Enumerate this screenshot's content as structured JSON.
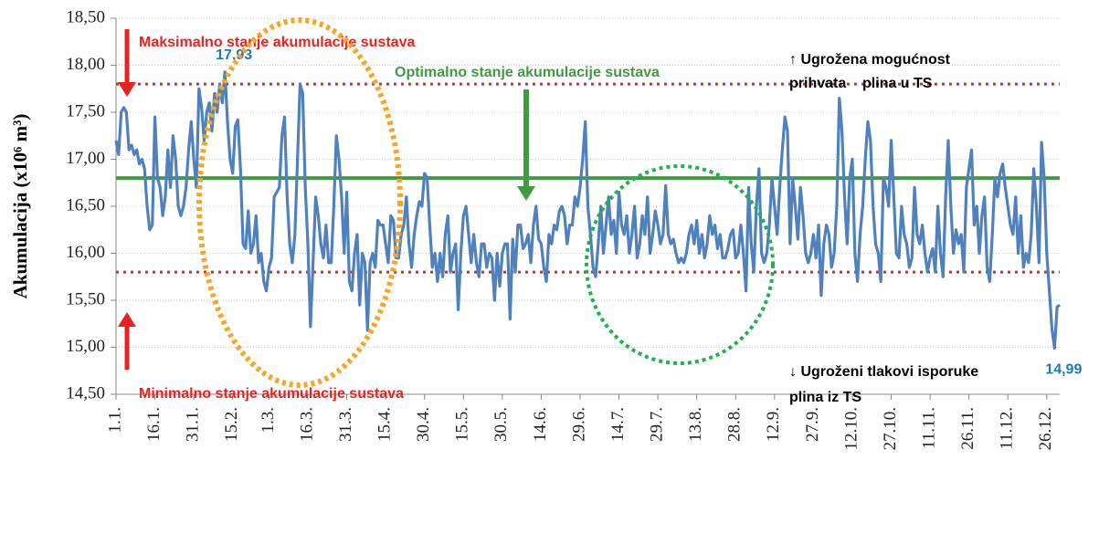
{
  "chart_data": {
    "type": "line",
    "y_label": "Akumulacija (x10⁶ m³)",
    "ylim": [
      14.5,
      18.5
    ],
    "yticks": [
      {
        "value": 14.5,
        "label": "14,50"
      },
      {
        "value": 15,
        "label": "15,00"
      },
      {
        "value": 15.5,
        "label": "15,50"
      },
      {
        "value": 16,
        "label": "16,00"
      },
      {
        "value": 16.5,
        "label": "16,50"
      },
      {
        "value": 17,
        "label": "17,00"
      },
      {
        "value": 17.5,
        "label": "17,50"
      },
      {
        "value": 18,
        "label": "18,00"
      },
      {
        "value": 18.5,
        "label": "18,50"
      }
    ],
    "grid": true,
    "color": "#4f81bd",
    "categories": [
      "1.1.",
      null,
      null,
      null,
      null,
      null,
      null,
      null,
      null,
      null,
      null,
      null,
      null,
      null,
      null,
      "16.1.",
      null,
      null,
      null,
      null,
      null,
      null,
      null,
      null,
      null,
      null,
      null,
      null,
      null,
      null,
      "31.1.",
      null,
      null,
      null,
      null,
      null,
      null,
      null,
      null,
      null,
      null,
      null,
      null,
      null,
      null,
      "15.2.",
      null,
      null,
      null,
      null,
      null,
      null,
      null,
      null,
      null,
      null,
      null,
      null,
      null,
      "1.3.",
      null,
      null,
      null,
      null,
      null,
      null,
      null,
      null,
      null,
      null,
      null,
      null,
      null,
      null,
      "16.3.",
      null,
      null,
      null,
      null,
      null,
      null,
      null,
      null,
      null,
      null,
      null,
      null,
      null,
      null,
      "31.3.",
      null,
      null,
      null,
      null,
      null,
      null,
      null,
      null,
      null,
      null,
      null,
      null,
      null,
      null,
      "15.4.",
      null,
      null,
      null,
      null,
      null,
      null,
      null,
      null,
      null,
      null,
      null,
      null,
      null,
      null,
      "30.4.",
      null,
      null,
      null,
      null,
      null,
      null,
      null,
      null,
      null,
      null,
      null,
      null,
      null,
      null,
      "15.5.",
      null,
      null,
      null,
      null,
      null,
      null,
      null,
      null,
      null,
      null,
      null,
      null,
      null,
      null,
      "30.5.",
      null,
      null,
      null,
      null,
      null,
      null,
      null,
      null,
      null,
      null,
      null,
      null,
      null,
      null,
      "14.6.",
      null,
      null,
      null,
      null,
      null,
      null,
      null,
      null,
      null,
      null,
      null,
      null,
      null,
      null,
      "29.6.",
      null,
      null,
      null,
      null,
      null,
      null,
      null,
      null,
      null,
      null,
      null,
      null,
      null,
      null,
      "14.7.",
      null,
      null,
      null,
      null,
      null,
      null,
      null,
      null,
      null,
      null,
      null,
      null,
      null,
      null,
      "29.7.",
      null,
      null,
      null,
      null,
      null,
      null,
      null,
      null,
      null,
      null,
      null,
      null,
      null,
      null,
      "13.8.",
      null,
      null,
      null,
      null,
      null,
      null,
      null,
      null,
      null,
      null,
      null,
      null,
      null,
      null,
      "28.8.",
      null,
      null,
      null,
      null,
      null,
      null,
      null,
      null,
      null,
      null,
      null,
      null,
      null,
      null,
      "12.9.",
      null,
      null,
      null,
      null,
      null,
      null,
      null,
      null,
      null,
      null,
      null,
      null,
      null,
      null,
      "27.9.",
      null,
      null,
      null,
      null,
      null,
      null,
      null,
      null,
      null,
      null,
      null,
      null,
      null,
      null,
      "12.10.",
      null,
      null,
      null,
      null,
      null,
      null,
      null,
      null,
      null,
      null,
      null,
      null,
      null,
      null,
      "27.10.",
      null,
      null,
      null,
      null,
      null,
      null,
      null,
      null,
      null,
      null,
      null,
      null,
      null,
      null,
      "11.11.",
      null,
      null,
      null,
      null,
      null,
      null,
      null,
      null,
      null,
      null,
      null,
      null,
      null,
      null,
      "26.11.",
      null,
      null,
      null,
      null,
      null,
      null,
      null,
      null,
      null,
      null,
      null,
      null,
      null,
      null,
      "11.12.",
      null,
      null,
      null,
      null,
      null,
      null,
      null,
      null,
      null,
      null,
      null,
      null,
      null,
      null,
      "26.12.",
      null,
      null,
      null,
      null,
      null
    ],
    "values": [
      17.2,
      17.05,
      17.5,
      17.55,
      17.5,
      17.1,
      17.15,
      17.05,
      17.1,
      16.95,
      17.0,
      16.9,
      16.5,
      16.25,
      16.3,
      17.45,
      16.8,
      16.7,
      16.4,
      16.6,
      17.1,
      16.7,
      17.25,
      17.0,
      16.5,
      16.4,
      16.5,
      16.7,
      17.1,
      17.4,
      17.0,
      16.7,
      17.75,
      17.55,
      17.2,
      17.5,
      17.6,
      17.3,
      17.7,
      17.5,
      17.8,
      17.6,
      17.93,
      17.4,
      17.0,
      16.85,
      17.35,
      17.42,
      16.9,
      16.1,
      16.05,
      16.45,
      16.0,
      16.1,
      16.4,
      15.9,
      16.0,
      15.7,
      15.6,
      15.85,
      15.95,
      16.6,
      16.65,
      16.7,
      17.25,
      17.45,
      16.6,
      16.1,
      15.9,
      16.2,
      17.0,
      17.8,
      17.7,
      16.7,
      16.1,
      15.22,
      15.9,
      16.6,
      16.4,
      16.1,
      15.95,
      16.3,
      15.9,
      15.9,
      16.5,
      17.25,
      17.0,
      16.6,
      16.0,
      16.65,
      15.7,
      15.6,
      16.0,
      16.2,
      15.45,
      16.0,
      15.9,
      15.18,
      15.9,
      16.0,
      15.85,
      16.35,
      16.3,
      16.3,
      16.1,
      15.9,
      16.4,
      16.35,
      15.95,
      15.95,
      16.2,
      16.3,
      16.6,
      16.1,
      15.85,
      16.2,
      16.4,
      16.55,
      16.5,
      16.85,
      16.8,
      16.3,
      15.85,
      16.0,
      15.7,
      16.0,
      15.75,
      16.2,
      16.4,
      15.8,
      16.0,
      16.1,
      15.4,
      16.0,
      16.4,
      16.5,
      16.2,
      15.9,
      16.2,
      15.9,
      15.75,
      16.1,
      16.1,
      15.85,
      16.0,
      15.95,
      15.5,
      16.0,
      15.65,
      16.0,
      16.1,
      16.1,
      15.3,
      16.15,
      15.8,
      16.3,
      16.3,
      16.05,
      16.1,
      16.2,
      15.9,
      16.3,
      16.5,
      16.15,
      16.1,
      15.85,
      15.7,
      16.2,
      16.1,
      16.3,
      16.25,
      16.45,
      16.5,
      16.4,
      16.1,
      16.3,
      16.3,
      16.6,
      16.5,
      16.7,
      17.0,
      17.4,
      16.5,
      16.2,
      15.85,
      15.75,
      16.1,
      16.5,
      16.0,
      16.3,
      16.6,
      16.2,
      16.35,
      16.0,
      16.65,
      16.3,
      16.2,
      16.4,
      16.0,
      16.2,
      16.5,
      15.95,
      16.1,
      16.4,
      16.2,
      16.6,
      16.0,
      16.2,
      16.45,
      16.3,
      16.1,
      16.2,
      16.72,
      16.2,
      16.1,
      16.15,
      16.0,
      15.9,
      15.95,
      15.9,
      16.0,
      16.2,
      16.3,
      16.1,
      16.35,
      16.0,
      16.2,
      15.95,
      16.1,
      16.4,
      16.2,
      16.3,
      16.05,
      16.2,
      15.95,
      15.95,
      16.05,
      16.2,
      16.25,
      15.95,
      16.0,
      16.3,
      16.0,
      15.6,
      16.7,
      16.1,
      15.8,
      16.5,
      16.9,
      16.0,
      15.9,
      16.0,
      16.3,
      16.8,
      16.5,
      16.2,
      16.7,
      17.1,
      17.45,
      17.3,
      16.1,
      16.8,
      16.5,
      16.15,
      16.7,
      16.4,
      16.0,
      15.9,
      16.0,
      16.2,
      15.95,
      16.3,
      15.55,
      16.1,
      16.3,
      16.2,
      15.85,
      16.0,
      16.5,
      17.65,
      17.3,
      16.6,
      16.1,
      16.8,
      17.0,
      16.0,
      15.7,
      16.2,
      16.5,
      17.0,
      17.4,
      17.2,
      16.5,
      16.1,
      16.0,
      15.7,
      16.8,
      16.7,
      16.5,
      17.2,
      16.6,
      16.0,
      15.95,
      16.5,
      16.2,
      16.1,
      15.85,
      15.95,
      16.7,
      16.2,
      16.1,
      16.3,
      16.0,
      15.8,
      15.95,
      16.05,
      15.8,
      16.5,
      16.0,
      15.75,
      16.6,
      17.2,
      16.5,
      16.0,
      16.25,
      16.1,
      16.2,
      15.8,
      16.7,
      16.9,
      17.1,
      16.3,
      16.5,
      16.0,
      16.4,
      16.6,
      15.85,
      15.7,
      16.2,
      16.8,
      16.6,
      16.85,
      16.95,
      16.7,
      16.5,
      16.3,
      16.2,
      16.6,
      16.0,
      16.4,
      15.85,
      16.0,
      15.9,
      16.2,
      16.9,
      16.5,
      15.9,
      17.18,
      16.8,
      16.0,
      15.6,
      15.2,
      14.99,
      15.43,
      15.45
    ],
    "value_labels": [
      null,
      null,
      null,
      null,
      null,
      null,
      null,
      null,
      null,
      null,
      null,
      null,
      null,
      null,
      null,
      null,
      null,
      null,
      null,
      null,
      null,
      null,
      null,
      null,
      null,
      null,
      null,
      null,
      null,
      null,
      null,
      null,
      null,
      null,
      null,
      null,
      null,
      null,
      null,
      null,
      null,
      null,
      "17,93",
      null,
      null,
      null,
      null,
      null,
      null,
      null,
      null,
      null,
      null,
      null,
      null,
      null,
      null,
      null,
      null,
      null,
      null,
      null,
      null,
      null,
      null,
      null,
      null,
      null,
      null,
      null,
      null,
      null,
      null,
      null,
      null,
      null,
      null,
      null,
      null,
      null,
      null,
      null,
      null,
      null,
      null,
      null,
      null,
      null,
      null,
      null,
      null,
      null,
      null,
      null,
      null,
      null,
      null,
      null,
      null,
      null,
      null,
      null,
      null,
      null,
      null,
      null,
      null,
      null,
      null,
      null,
      null,
      null,
      null,
      null,
      null,
      null,
      null,
      null,
      null,
      null,
      null,
      null,
      null,
      null,
      null,
      null,
      null,
      null,
      null,
      null,
      null,
      null,
      null,
      null,
      null,
      null,
      null,
      null,
      null,
      null,
      null,
      null,
      null,
      null,
      null,
      null,
      null,
      null,
      null,
      null,
      null,
      null,
      null,
      null,
      null,
      null,
      null,
      null,
      null,
      null,
      null,
      null,
      null,
      null,
      null,
      null,
      null,
      null,
      null,
      null,
      null,
      null,
      null,
      null,
      null,
      null,
      null,
      null,
      null,
      null,
      null,
      null,
      null,
      null,
      null,
      null,
      null,
      null,
      null,
      null,
      null,
      null,
      null,
      null,
      null,
      null,
      null,
      null,
      null,
      null,
      null,
      null,
      null,
      null,
      null,
      null,
      null,
      null,
      null,
      null,
      null,
      null,
      null,
      null,
      null,
      null,
      null,
      null,
      null,
      null,
      null,
      null,
      null,
      null,
      null,
      null,
      null,
      null,
      null,
      null,
      null,
      null,
      null,
      null,
      null,
      null,
      null,
      null,
      null,
      null,
      null,
      null,
      null,
      null,
      null,
      null,
      null,
      null,
      null,
      null,
      null,
      null,
      null,
      null,
      null,
      null,
      null,
      null,
      null,
      null,
      null,
      null,
      null,
      null,
      null,
      null,
      null,
      null,
      null,
      null,
      null,
      null,
      null,
      null,
      null,
      null,
      null,
      null,
      null,
      null,
      null,
      null,
      null,
      null,
      null,
      null,
      null,
      null,
      null,
      null,
      null,
      null,
      null,
      null,
      null,
      null,
      null,
      null,
      null,
      null,
      null,
      null,
      null,
      null,
      null,
      null,
      null,
      null,
      null,
      null,
      null,
      null,
      null,
      null,
      null,
      null,
      null,
      null,
      null,
      null,
      null,
      null,
      null,
      null,
      null,
      null,
      null,
      null,
      null,
      null,
      null,
      null,
      null,
      null,
      null,
      null,
      null,
      null,
      null,
      null,
      null,
      null,
      null,
      null,
      null,
      null,
      null,
      null,
      null,
      null,
      null,
      null,
      null,
      null,
      null,
      null,
      null,
      null,
      null,
      null,
      null,
      null,
      "14,99",
      null,
      null
    ],
    "value_label_color": "#1f77b4",
    "reference_lines": [
      {
        "value": 17.8,
        "color": "#e8221f",
        "style": "dotted"
      },
      {
        "value": 16.8,
        "color": "#3f9a42",
        "style": "solid"
      },
      {
        "value": 15.8,
        "color": "#e8221f",
        "style": "dotted"
      }
    ],
    "annotations": [
      {
        "text": "Maksimalno stanje akumulacije sustava",
        "color": "#e8221f"
      },
      {
        "text": "Optimalno stanje akumulacije sustava",
        "color": "#3f9a42"
      },
      {
        "text": "↑ Ugrožena mogućnost",
        "color": "#000000"
      },
      {
        "text": "prihvata    plina u TS",
        "color": "#000000"
      },
      {
        "text": "Minimalno stanje akumulacije sustava",
        "color": "#e8221f"
      },
      {
        "text": "↓ Ugroženi tlakovi isporuke",
        "color": "#000000"
      },
      {
        "text": "plina iz TS",
        "color": "#000000"
      }
    ]
  }
}
